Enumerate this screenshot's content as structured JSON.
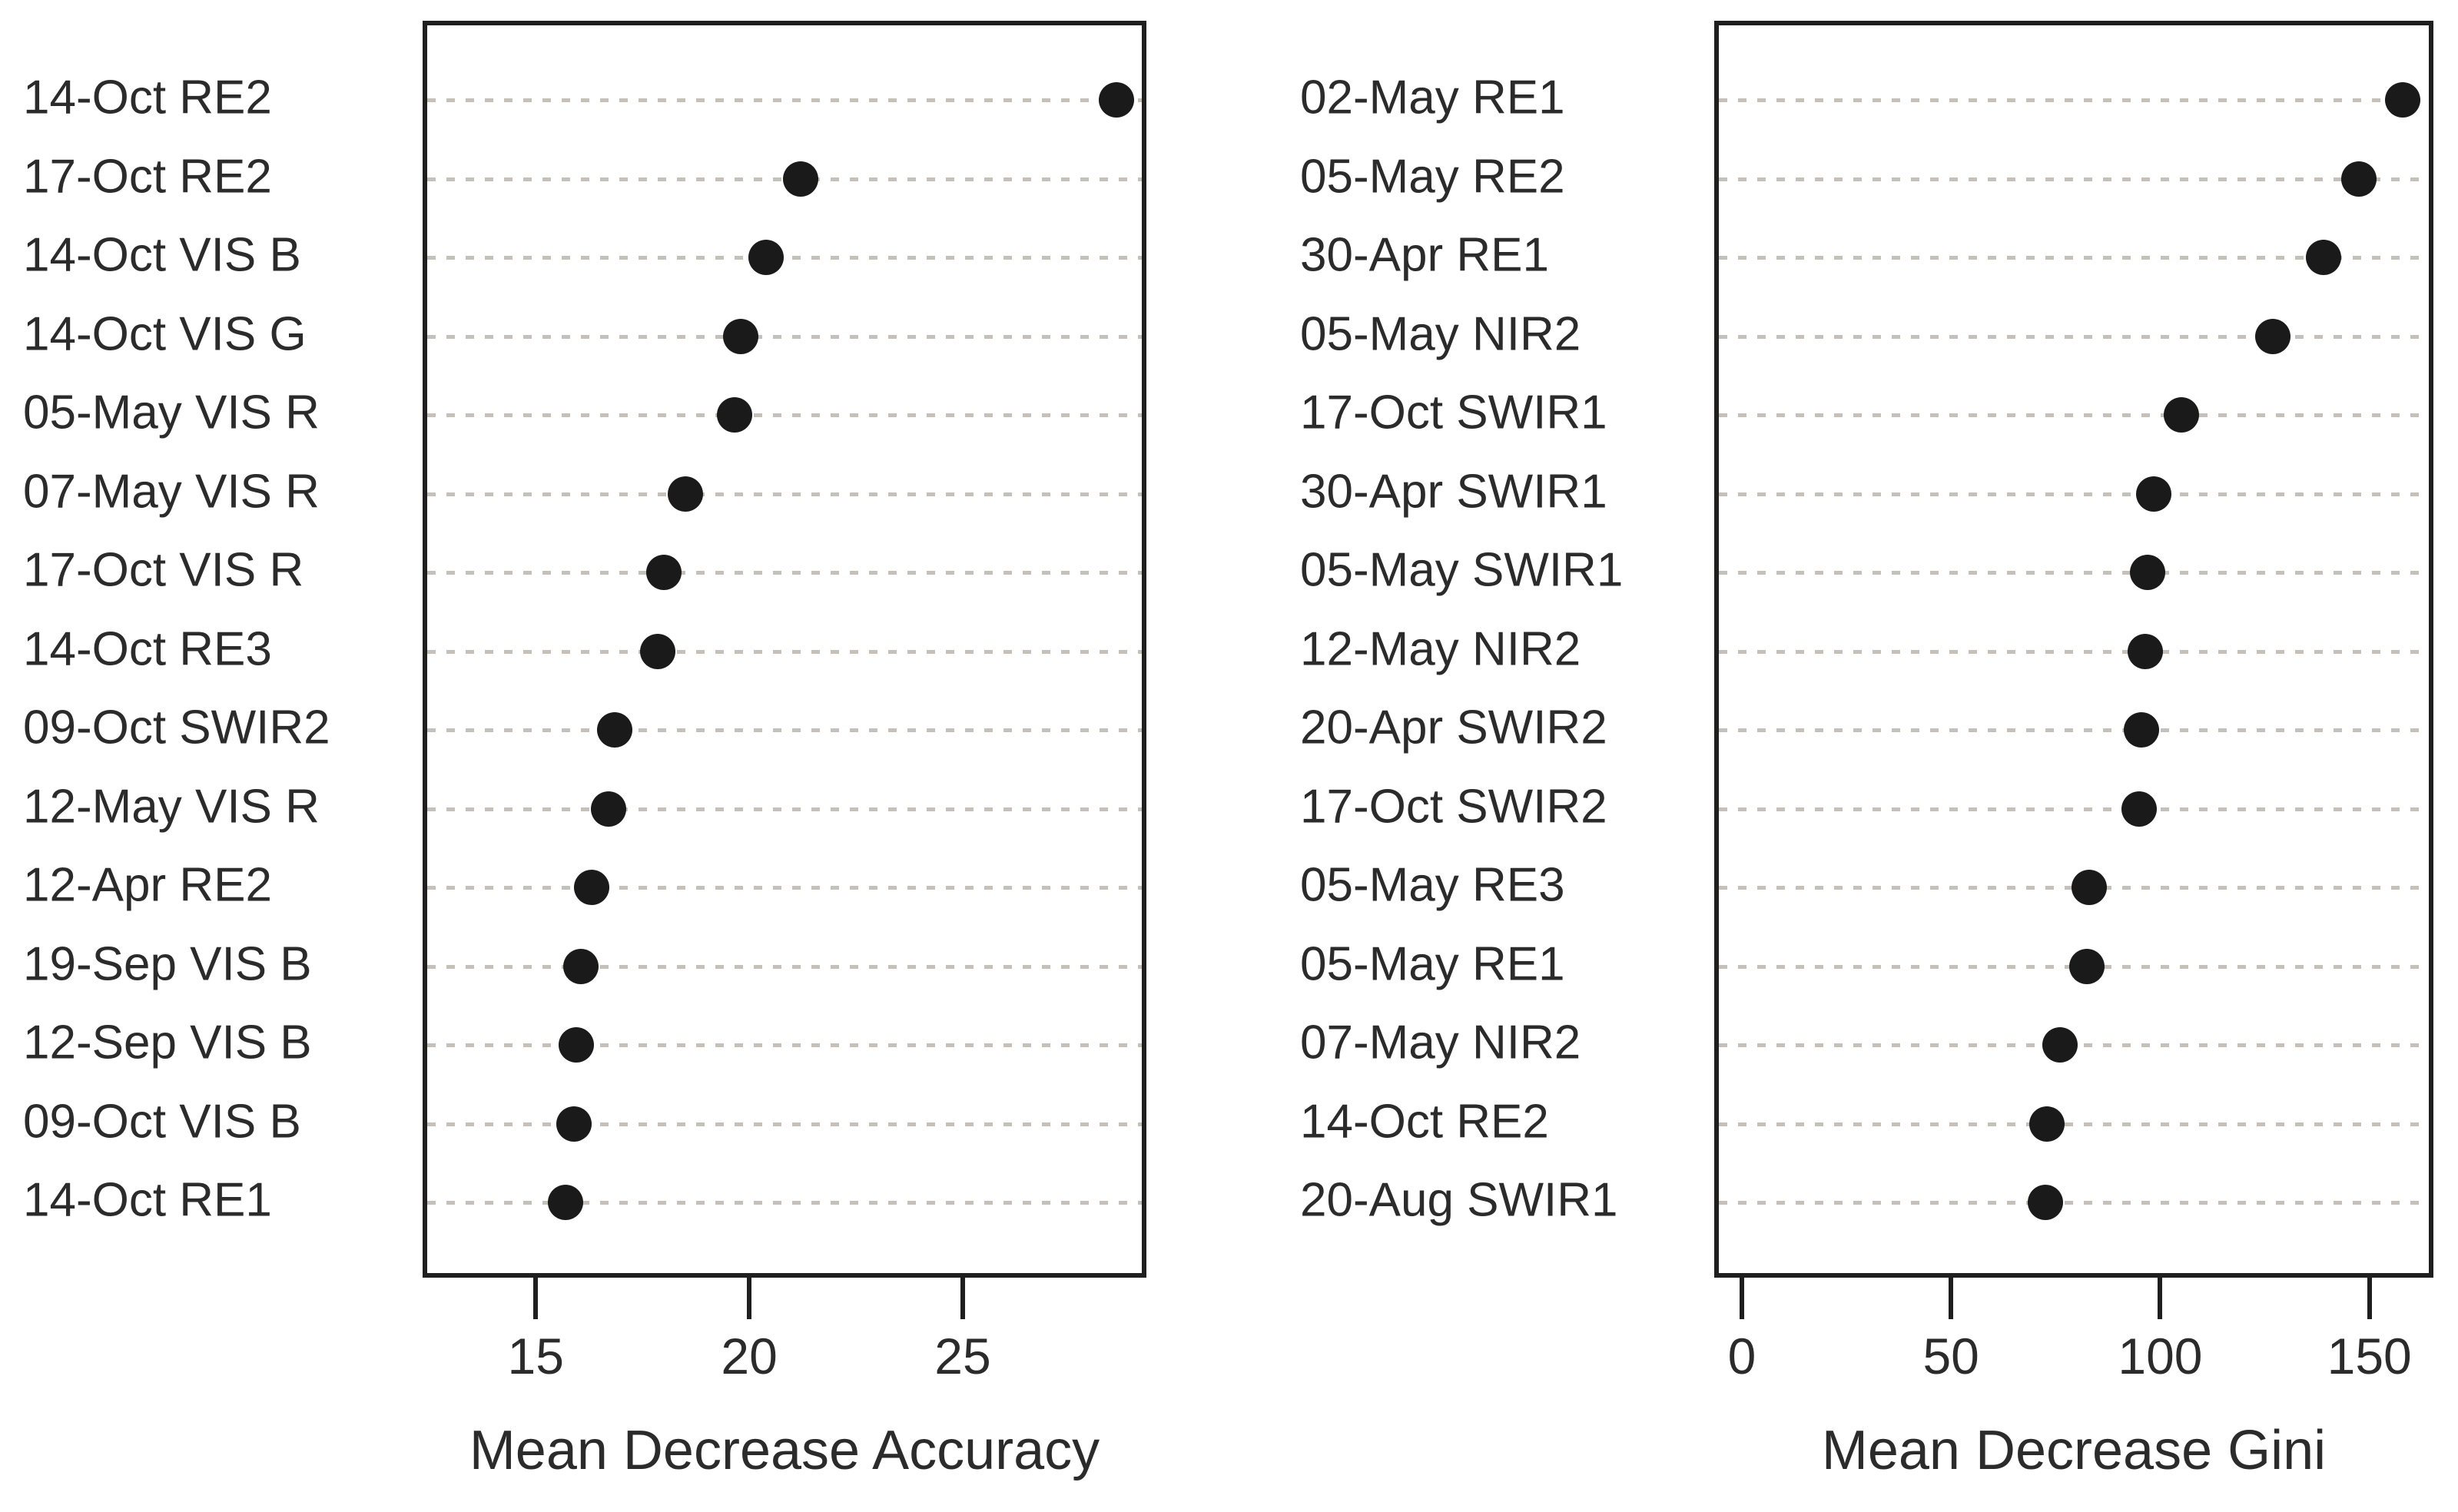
{
  "chart_data": [
    {
      "type": "scatter",
      "variant": "dot-plot",
      "title": "",
      "xlabel": "Mean Decrease Accuracy",
      "ylabel": "",
      "xlim": [
        12.35,
        29.3
      ],
      "xticks": [
        15,
        20,
        25
      ],
      "grid": "dotted-horizontal-per-category",
      "legend": "none",
      "categories": [
        "14-Oct RE2",
        "17-Oct RE2",
        "14-Oct VIS B",
        "14-Oct VIS G",
        "05-May VIS R",
        "07-May VIS R",
        "17-Oct VIS R",
        "14-Oct RE3",
        "09-Oct SWIR2",
        "12-May VIS R",
        "12-Apr RE2",
        "19-Sep VIS B",
        "12-Sep VIS B",
        "09-Oct VIS B",
        "14-Oct RE1"
      ],
      "values": [
        28.6,
        21.2,
        20.4,
        19.8,
        19.65,
        18.5,
        18.0,
        17.85,
        16.85,
        16.7,
        16.3,
        16.05,
        15.95,
        15.9,
        15.7
      ],
      "point_color": "#1a1a1a",
      "grid_color": "#c6c0ba",
      "frame_color": "#1f1f1f",
      "text_color": "#2b2b2b"
    },
    {
      "type": "scatter",
      "variant": "dot-plot",
      "title": "",
      "xlabel": "Mean Decrease Gini",
      "ylabel": "",
      "xlim": [
        -6.6,
        165.3
      ],
      "xticks": [
        0,
        50,
        100,
        150
      ],
      "grid": "dotted-horizontal-per-category",
      "legend": "none",
      "categories": [
        "02-May RE1",
        "05-May RE2",
        "30-Apr RE1",
        "05-May NIR2",
        "17-Oct SWIR1",
        "30-Apr SWIR1",
        "05-May SWIR1",
        "12-May NIR2",
        "20-Apr SWIR2",
        "17-Oct SWIR2",
        "05-May RE3",
        "05-May RE1",
        "07-May NIR2",
        "14-Oct RE2",
        "20-Aug SWIR1"
      ],
      "values": [
        158,
        147.5,
        139,
        127,
        105,
        98.5,
        97,
        96.5,
        95.5,
        95,
        83,
        82.5,
        76,
        73,
        72.5
      ],
      "point_color": "#1a1a1a",
      "grid_color": "#c6c0ba",
      "frame_color": "#1f1f1f",
      "text_color": "#2b2b2b"
    }
  ]
}
